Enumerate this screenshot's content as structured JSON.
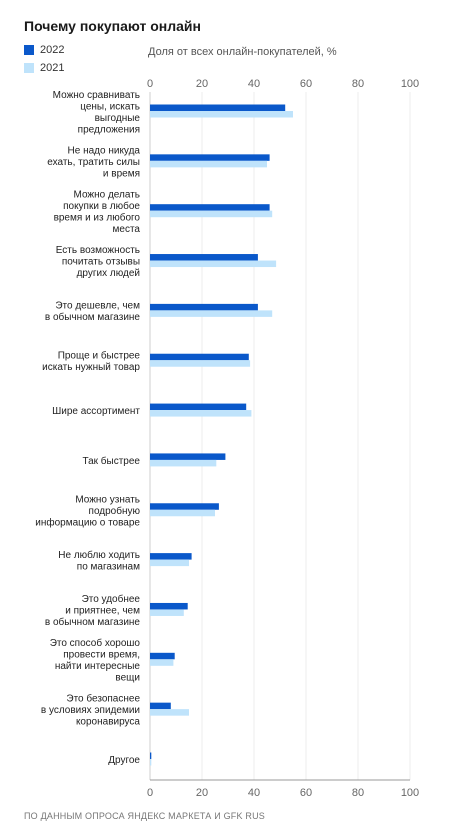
{
  "title": "Почему покупают онлайн",
  "legend": [
    {
      "label": "2022",
      "color": "#0a58ca"
    },
    {
      "label": "2021",
      "color": "#bfe3fb"
    }
  ],
  "axis_title": "Доля от всех онлайн-покупателей, %",
  "source": "ПО ДАННЫМ ОПРОСА ЯНДЕКС МАРКЕТА И GFK RUS",
  "chart_data": {
    "type": "bar",
    "orientation": "horizontal",
    "xlim": [
      0,
      100
    ],
    "ticks": [
      0,
      20,
      40,
      60,
      80,
      100
    ],
    "grid": true,
    "categories": [
      [
        "Можно сравнивать",
        "цены, искать",
        "выгодные",
        "предложения"
      ],
      [
        "Не надо никуда",
        "ехать, тратить силы",
        "и время"
      ],
      [
        "Можно делать",
        "покупки в любое",
        "время и из любого",
        "места"
      ],
      [
        "Есть возможность",
        "почитать отзывы",
        "других людей"
      ],
      [
        "Это дешевле, чем",
        "в обычном магазине"
      ],
      [
        "Проще и быстрее",
        "искать нужный товар"
      ],
      [
        "Шире ассортимент"
      ],
      [
        "Так быстрее"
      ],
      [
        "Можно узнать",
        "подробную",
        "информацию о товаре"
      ],
      [
        "Не люблю ходить",
        "по магазинам"
      ],
      [
        "Это удобнее",
        "и приятнее, чем",
        "в обычном магазине"
      ],
      [
        "Это способ хорошо",
        "провести время,",
        "найти интересные",
        "вещи"
      ],
      [
        "Это безопаснее",
        "в условиях эпидемии",
        "коронавируса"
      ],
      [
        "Другое"
      ]
    ],
    "series": [
      {
        "name": "2022",
        "color": "#0a58ca",
        "values": [
          52,
          46,
          46,
          41.5,
          41.5,
          38,
          37,
          29,
          26.5,
          16,
          14.5,
          9.5,
          8,
          0.5
        ]
      },
      {
        "name": "2021",
        "color": "#bfe3fb",
        "values": [
          55,
          45,
          47,
          48.5,
          47,
          38.5,
          39,
          25.5,
          25,
          15,
          13,
          9,
          15,
          0.5
        ]
      }
    ]
  }
}
